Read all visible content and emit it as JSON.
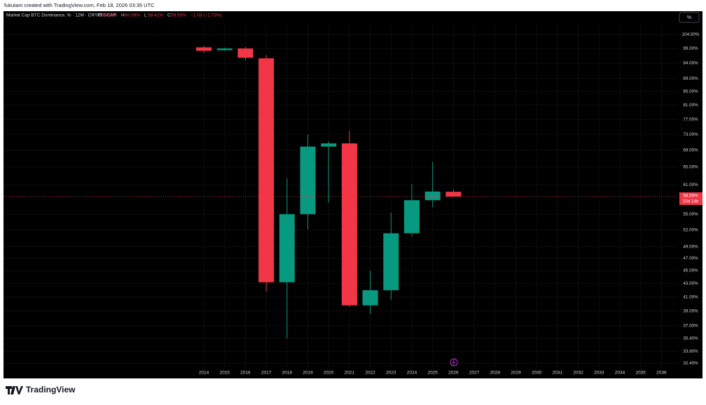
{
  "header": {
    "attribution": "fukutani created with TradingView.com, Feb 18, 2026 03:35 UTC"
  },
  "chart_data": {
    "type": "candlestick",
    "title": "Market Cap BTC Dominance, % · 12M · CRYPTOCAP",
    "legend": [
      {
        "label": "O",
        "value": "59.55%"
      },
      {
        "label": "H",
        "value": "60.08%"
      },
      {
        "label": "L",
        "value": "58.41%"
      },
      {
        "label": "C",
        "value": "58.55%"
      },
      {
        "label": "",
        "value": "−1.03 (−1.73%)"
      }
    ],
    "scale_button": "%",
    "categories": [
      "2014",
      "2015",
      "2016",
      "2017",
      "2018",
      "2019",
      "2020",
      "2021",
      "2022",
      "2023",
      "2024",
      "2025",
      "2026",
      "2027",
      "2028",
      "2029",
      "2030",
      "2031",
      "2032",
      "2033",
      "2034",
      "2035",
      "2036"
    ],
    "open": [
      99.4,
      98.4,
      99.0,
      95.6,
      43.2,
      55.0,
      69.9,
      70.7,
      39.8,
      42.0,
      51.4,
      57.8,
      59.55,
      null,
      null,
      null,
      null,
      null,
      null,
      null,
      null,
      null,
      null
    ],
    "high": [
      99.9,
      99.3,
      99.5,
      96.7,
      62.5,
      73.0,
      71.2,
      73.9,
      45.0,
      55.3,
      61.2,
      66.2,
      60.08,
      null,
      null,
      null,
      null,
      null,
      null,
      null,
      null,
      null,
      null
    ],
    "low": [
      97.5,
      98.2,
      95.1,
      41.8,
      35.4,
      52.1,
      57.3,
      39.6,
      38.6,
      40.6,
      50.8,
      56.4,
      58.41,
      null,
      null,
      null,
      null,
      null,
      null,
      null,
      null,
      null,
      null
    ],
    "close": [
      98.2,
      99.0,
      95.8,
      43.2,
      55.0,
      69.9,
      70.7,
      39.8,
      42.0,
      51.4,
      57.8,
      59.6,
      58.55,
      null,
      null,
      null,
      null,
      null,
      null,
      null,
      null,
      null,
      null
    ],
    "up_color": "#089981",
    "down_color": "#f23645",
    "last_price_label": "58.55%",
    "countdown": "10d 14h",
    "log_scale": true,
    "ylim": [
      31.8,
      113
    ],
    "yticks": [
      {
        "value": 104,
        "label": "104.00%"
      },
      {
        "value": 99,
        "label": "99.00%"
      },
      {
        "value": 94,
        "label": "94.00%"
      },
      {
        "value": 89,
        "label": "89.00%"
      },
      {
        "value": 85,
        "label": "85.00%"
      },
      {
        "value": 81,
        "label": "81.00%"
      },
      {
        "value": 77,
        "label": "77.00%"
      },
      {
        "value": 73,
        "label": "73.00%"
      },
      {
        "value": 69,
        "label": "69.00%"
      },
      {
        "value": 65,
        "label": "65.00%"
      },
      {
        "value": 61,
        "label": "61.00%"
      },
      {
        "value": 55,
        "label": "55.00%"
      },
      {
        "value": 52,
        "label": "52.00%"
      },
      {
        "value": 49,
        "label": "49.00%"
      },
      {
        "value": 47,
        "label": "47.00%"
      },
      {
        "value": 45,
        "label": "45.00%"
      },
      {
        "value": 43,
        "label": "43.00%"
      },
      {
        "value": 41,
        "label": "41.00%"
      },
      {
        "value": 39,
        "label": "39.00%"
      },
      {
        "value": 37,
        "label": "37.00%"
      },
      {
        "value": 35.4,
        "label": "35.40%"
      },
      {
        "value": 33.8,
        "label": "33.80%"
      },
      {
        "value": 32.4,
        "label": "32.40%"
      }
    ],
    "grid": true
  },
  "footer": {
    "brand": "TradingView"
  }
}
